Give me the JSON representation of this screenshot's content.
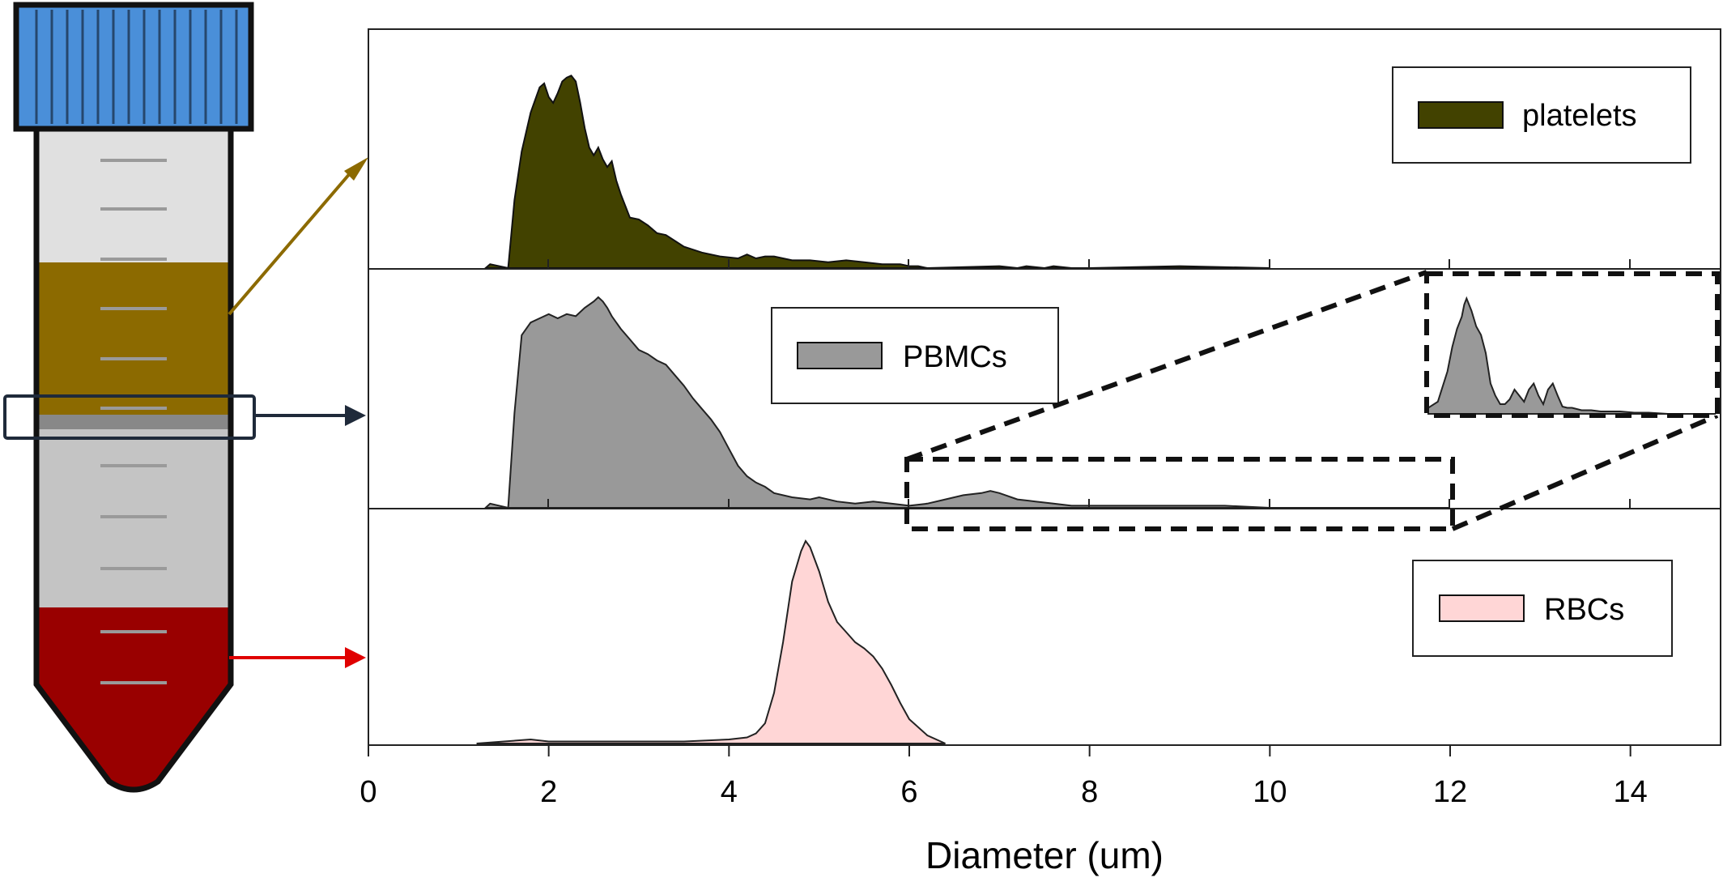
{
  "colors": {
    "cap": "#4a8fd9",
    "tube_empty": "#e0e0e0",
    "plasma": "#8c6a00",
    "buffy": "#888888",
    "ficoll": "#c4c4c4",
    "rbc_layer": "#990000",
    "platelets": "#424200",
    "pbmcs": "#999999",
    "rbcs": "#ffd6d6",
    "arrow_platelets": "#8c6a00",
    "arrow_pbmcs": "#1f2a3a",
    "arrow_rbcs": "#e00000"
  },
  "chart_data": {
    "type": "area",
    "xlabel": "Diameter (um)",
    "ylabel": "",
    "xlim": [
      0,
      15
    ],
    "xticks": [
      0,
      2,
      4,
      6,
      8,
      10,
      12,
      14
    ],
    "grid": false,
    "panels": [
      {
        "name": "platelets",
        "legend": "platelets",
        "legend_position": "top-right",
        "color": "#424200",
        "x": [
          1.3,
          1.35,
          1.55,
          1.62,
          1.7,
          1.8,
          1.9,
          1.95,
          2.0,
          2.05,
          2.1,
          2.15,
          2.2,
          2.25,
          2.3,
          2.35,
          2.4,
          2.45,
          2.5,
          2.55,
          2.6,
          2.65,
          2.7,
          2.75,
          2.8,
          2.85,
          2.9,
          3.0,
          3.1,
          3.2,
          3.3,
          3.4,
          3.5,
          3.7,
          3.9,
          4.1,
          4.2,
          4.3,
          4.4,
          4.5,
          4.6,
          4.7,
          4.9,
          5.1,
          5.3,
          5.5,
          5.7,
          5.9,
          6.0,
          6.1,
          6.2,
          7.0,
          7.2,
          7.3,
          7.5,
          7.6,
          7.8,
          8.0,
          9.0,
          10.0
        ],
        "y": [
          0.0,
          0.02,
          0.0,
          0.35,
          0.6,
          0.8,
          0.93,
          0.95,
          0.88,
          0.85,
          0.9,
          0.96,
          0.98,
          0.99,
          0.96,
          0.85,
          0.72,
          0.62,
          0.58,
          0.62,
          0.56,
          0.52,
          0.55,
          0.45,
          0.38,
          0.32,
          0.26,
          0.25,
          0.22,
          0.18,
          0.17,
          0.14,
          0.11,
          0.08,
          0.06,
          0.05,
          0.07,
          0.05,
          0.06,
          0.06,
          0.05,
          0.04,
          0.04,
          0.03,
          0.04,
          0.03,
          0.02,
          0.02,
          0.01,
          0.01,
          0.0,
          0.01,
          0.0,
          0.01,
          0.0,
          0.01,
          0.0,
          0.0,
          0.01,
          0.0
        ]
      },
      {
        "name": "PBMCs",
        "legend": "PBMCs",
        "legend_position": "top-center",
        "color": "#999999",
        "x": [
          1.3,
          1.35,
          1.55,
          1.62,
          1.7,
          1.8,
          1.9,
          2.0,
          2.1,
          2.2,
          2.3,
          2.4,
          2.5,
          2.55,
          2.6,
          2.65,
          2.7,
          2.8,
          2.9,
          3.0,
          3.1,
          3.2,
          3.3,
          3.4,
          3.5,
          3.6,
          3.7,
          3.8,
          3.9,
          4.0,
          4.1,
          4.2,
          4.3,
          4.4,
          4.5,
          4.7,
          4.9,
          5.0,
          5.2,
          5.4,
          5.6,
          5.8,
          6.0,
          6.2,
          6.4,
          6.6,
          6.8,
          6.9,
          7.0,
          7.2,
          7.4,
          7.6,
          7.8,
          8.0,
          8.5,
          9.0,
          9.5,
          10.0,
          11.0,
          12.0
        ],
        "y": [
          0.0,
          0.02,
          0.0,
          0.45,
          0.82,
          0.88,
          0.9,
          0.92,
          0.9,
          0.92,
          0.91,
          0.95,
          0.98,
          1.0,
          0.98,
          0.95,
          0.91,
          0.85,
          0.8,
          0.75,
          0.73,
          0.7,
          0.68,
          0.63,
          0.58,
          0.52,
          0.47,
          0.42,
          0.36,
          0.28,
          0.2,
          0.15,
          0.12,
          0.1,
          0.07,
          0.05,
          0.04,
          0.05,
          0.03,
          0.02,
          0.03,
          0.02,
          0.01,
          0.02,
          0.04,
          0.06,
          0.07,
          0.08,
          0.07,
          0.04,
          0.03,
          0.02,
          0.01,
          0.01,
          0.01,
          0.01,
          0.01,
          0.0,
          0.0,
          0.0
        ]
      },
      {
        "name": "RBCs",
        "legend": "RBCs",
        "legend_position": "top-right",
        "color": "#ffd6d6",
        "x": [
          1.2,
          1.8,
          2.0,
          2.5,
          3.0,
          3.5,
          4.0,
          4.2,
          4.3,
          4.4,
          4.5,
          4.6,
          4.7,
          4.8,
          4.85,
          4.9,
          5.0,
          5.1,
          5.2,
          5.3,
          5.4,
          5.5,
          5.6,
          5.7,
          5.8,
          5.9,
          6.0,
          6.2,
          6.4
        ],
        "y": [
          0.0,
          0.02,
          0.01,
          0.01,
          0.01,
          0.01,
          0.02,
          0.03,
          0.05,
          0.1,
          0.25,
          0.5,
          0.8,
          0.95,
          1.0,
          0.97,
          0.85,
          0.7,
          0.6,
          0.55,
          0.5,
          0.47,
          0.43,
          0.37,
          0.29,
          0.2,
          0.12,
          0.04,
          0.0
        ]
      }
    ],
    "zoom_inset": {
      "source_panel": "PBMCs",
      "x_range": [
        6,
        12
      ],
      "x": [
        6.0,
        6.2,
        6.4,
        6.5,
        6.6,
        6.7,
        6.75,
        6.8,
        6.85,
        6.9,
        7.0,
        7.1,
        7.2,
        7.3,
        7.4,
        7.5,
        7.6,
        7.7,
        7.8,
        7.9,
        8.0,
        8.1,
        8.2,
        8.3,
        8.4,
        8.5,
        8.6,
        8.7,
        8.8,
        8.9,
        9.0,
        9.2,
        9.4,
        9.6,
        9.8,
        10.0,
        10.3,
        10.6,
        11.0,
        11.5,
        12.0
      ],
      "y": [
        0.05,
        0.1,
        0.35,
        0.55,
        0.7,
        0.8,
        0.9,
        0.95,
        0.9,
        0.85,
        0.72,
        0.65,
        0.5,
        0.25,
        0.15,
        0.08,
        0.08,
        0.12,
        0.2,
        0.15,
        0.1,
        0.2,
        0.25,
        0.15,
        0.08,
        0.2,
        0.25,
        0.15,
        0.06,
        0.05,
        0.05,
        0.03,
        0.03,
        0.02,
        0.02,
        0.02,
        0.01,
        0.01,
        0.0,
        0.0,
        0.0
      ]
    }
  }
}
